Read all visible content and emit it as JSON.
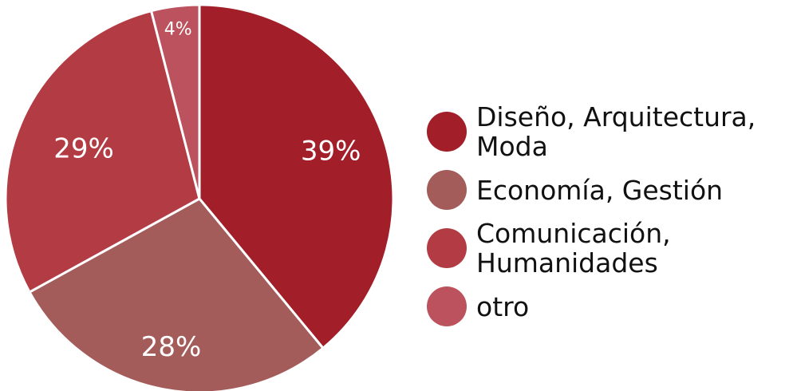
{
  "chart_data": {
    "type": "pie",
    "title": "",
    "slices": [
      {
        "label": "Diseño, Arquitectura,\nModa",
        "value": 39,
        "display": "39%",
        "color": "#a21f2a"
      },
      {
        "label": "Economía, Gestión",
        "value": 28,
        "display": "28%",
        "color": "#a35c5a"
      },
      {
        "label": "Comunicación,\nHumanidades",
        "value": 29,
        "display": "29%",
        "color": "#b33c44"
      },
      {
        "label": "otro",
        "value": 4,
        "display": "4%",
        "color": "#bc525e"
      }
    ],
    "legend_placement": "right",
    "start_angle_deg": 0,
    "direction": "clockwise"
  }
}
